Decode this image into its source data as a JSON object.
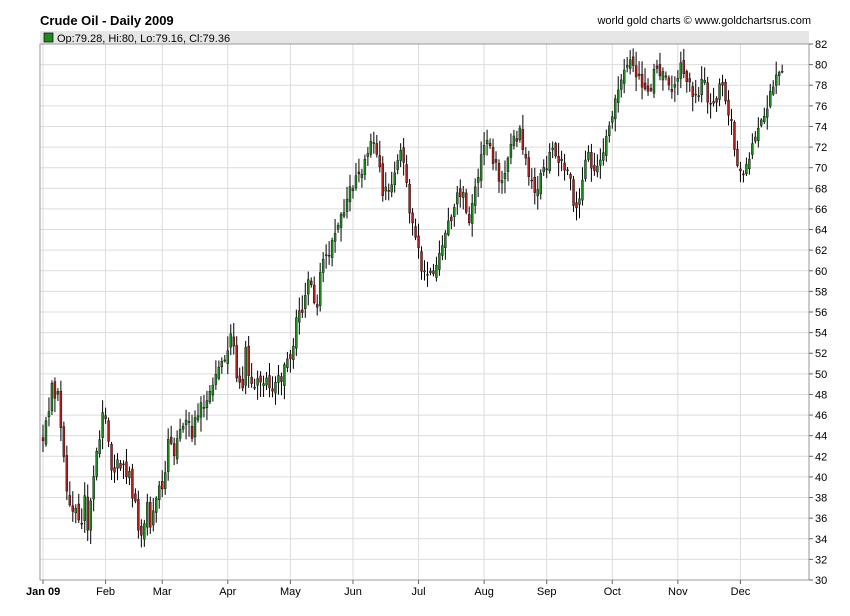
{
  "title": "Crude Oil - Daily 2009",
  "source": "world gold charts © www.goldchartsrus.com",
  "legend": {
    "text": "Op:79.28, Hi:80, Lo:79.16, Cl:79.36",
    "color": "#1e8a1e"
  },
  "colors": {
    "up": "#1e8a1e",
    "down": "#b01e1e",
    "wick": "#000000",
    "grid": "#dcdcdc",
    "header": "#e6e6e6"
  },
  "chart_data": {
    "type": "candlestick",
    "title": "Crude Oil - Daily 2009",
    "ylim": [
      30,
      82
    ],
    "yticks": [
      30,
      32,
      34,
      36,
      38,
      40,
      42,
      44,
      46,
      48,
      50,
      52,
      54,
      56,
      58,
      60,
      62,
      64,
      66,
      68,
      70,
      72,
      74,
      76,
      78,
      80,
      82
    ],
    "xlim": [
      0,
      256
    ],
    "xticks": [
      {
        "label": "Jan 09",
        "pos": 0
      },
      {
        "label": "Feb",
        "pos": 21
      },
      {
        "label": "Mar",
        "pos": 40
      },
      {
        "label": "Apr",
        "pos": 62
      },
      {
        "label": "May",
        "pos": 83
      },
      {
        "label": "Jun",
        "pos": 104
      },
      {
        "label": "Jul",
        "pos": 126
      },
      {
        "label": "Aug",
        "pos": 148
      },
      {
        "label": "Sep",
        "pos": 169
      },
      {
        "label": "Oct",
        "pos": 191
      },
      {
        "label": "Nov",
        "pos": 213
      },
      {
        "label": "Dec",
        "pos": 234
      }
    ],
    "last_bar": {
      "open": 79.28,
      "high": 80,
      "low": 79.16,
      "close": 79.36
    },
    "close_path": [
      [
        0,
        44
      ],
      [
        2,
        46
      ],
      [
        3,
        48.5
      ],
      [
        5,
        48
      ],
      [
        6,
        45
      ],
      [
        8,
        38
      ],
      [
        10,
        37
      ],
      [
        12,
        36.5
      ],
      [
        13,
        36
      ],
      [
        14,
        38
      ],
      [
        15,
        35
      ],
      [
        17,
        40
      ],
      [
        19,
        44
      ],
      [
        20,
        46
      ],
      [
        22,
        44
      ],
      [
        23,
        41
      ],
      [
        25,
        41
      ],
      [
        27,
        41
      ],
      [
        29,
        40
      ],
      [
        31,
        37
      ],
      [
        32,
        35
      ],
      [
        33,
        34.5
      ],
      [
        35,
        37
      ],
      [
        36,
        35
      ],
      [
        38,
        38.5
      ],
      [
        40,
        39
      ],
      [
        42,
        43
      ],
      [
        44,
        42.5
      ],
      [
        45,
        44
      ],
      [
        46,
        45
      ],
      [
        48,
        45.5
      ],
      [
        50,
        44
      ],
      [
        52,
        46.5
      ],
      [
        54,
        47
      ],
      [
        56,
        48.5
      ],
      [
        58,
        50
      ],
      [
        59,
        51
      ],
      [
        60,
        51.5
      ],
      [
        61,
        51.5
      ],
      [
        63,
        54
      ],
      [
        64,
        52
      ],
      [
        65,
        49
      ],
      [
        66,
        49
      ],
      [
        67,
        48.5
      ],
      [
        68,
        52.5
      ],
      [
        69,
        50.5
      ],
      [
        71,
        49
      ],
      [
        73,
        49
      ],
      [
        75,
        50
      ],
      [
        76,
        48
      ],
      [
        78,
        49
      ],
      [
        80,
        49.5
      ],
      [
        82,
        51
      ],
      [
        84,
        53
      ],
      [
        85,
        55
      ],
      [
        87,
        56
      ],
      [
        88,
        58
      ],
      [
        90,
        59
      ],
      [
        91,
        57
      ],
      [
        92,
        57
      ],
      [
        93,
        60
      ],
      [
        95,
        61
      ],
      [
        97,
        63
      ],
      [
        99,
        65
      ],
      [
        101,
        66
      ],
      [
        103,
        68
      ],
      [
        105,
        69
      ],
      [
        107,
        70
      ],
      [
        109,
        71
      ],
      [
        110,
        72
      ],
      [
        112,
        71.5
      ],
      [
        113,
        70
      ],
      [
        114,
        67
      ],
      [
        116,
        68
      ],
      [
        118,
        70
      ],
      [
        120,
        71
      ],
      [
        121,
        70
      ],
      [
        122,
        68
      ],
      [
        123,
        66
      ],
      [
        125,
        63.5
      ],
      [
        127,
        60.5
      ],
      [
        129,
        59
      ],
      [
        130,
        59.5
      ],
      [
        132,
        61
      ],
      [
        134,
        63
      ],
      [
        136,
        65
      ],
      [
        138,
        66
      ],
      [
        139,
        68
      ],
      [
        141,
        67
      ],
      [
        142,
        66
      ],
      [
        143,
        65
      ],
      [
        145,
        68
      ],
      [
        147,
        71
      ],
      [
        149,
        72
      ],
      [
        150,
        71.5
      ],
      [
        152,
        70
      ],
      [
        153,
        68.5
      ],
      [
        155,
        70
      ],
      [
        156,
        71.5
      ],
      [
        157,
        72
      ],
      [
        158,
        73
      ],
      [
        160,
        73.5
      ],
      [
        161,
        72
      ],
      [
        162,
        70.5
      ],
      [
        164,
        68.5
      ],
      [
        165,
        68
      ],
      [
        167,
        69
      ],
      [
        169,
        70
      ],
      [
        170,
        71
      ],
      [
        171,
        72
      ],
      [
        172,
        71
      ],
      [
        173,
        71
      ],
      [
        175,
        70
      ],
      [
        176,
        70
      ],
      [
        177,
        68.5
      ],
      [
        178,
        67
      ],
      [
        179,
        66.5
      ],
      [
        181,
        68.5
      ],
      [
        182,
        71
      ],
      [
        183,
        71
      ],
      [
        184,
        70
      ],
      [
        185,
        70
      ],
      [
        187,
        71
      ],
      [
        189,
        73
      ],
      [
        191,
        75
      ],
      [
        193,
        77
      ],
      [
        195,
        79
      ],
      [
        197,
        80.5
      ],
      [
        198,
        80
      ],
      [
        200,
        79
      ],
      [
        202,
        78
      ],
      [
        204,
        78
      ],
      [
        206,
        80
      ],
      [
        207,
        79
      ],
      [
        209,
        78.5
      ],
      [
        210,
        77.5
      ],
      [
        212,
        78
      ],
      [
        214,
        79.5
      ],
      [
        216,
        78.5
      ],
      [
        218,
        77
      ],
      [
        220,
        77.5
      ],
      [
        221,
        78
      ],
      [
        222,
        78
      ],
      [
        224,
        76
      ],
      [
        226,
        77
      ],
      [
        227,
        77.5
      ],
      [
        228,
        77.5
      ],
      [
        229,
        76.5
      ],
      [
        231,
        74
      ],
      [
        232,
        72
      ],
      [
        233,
        70
      ],
      [
        235,
        69.5
      ],
      [
        236,
        70.5
      ],
      [
        238,
        72
      ],
      [
        240,
        74
      ],
      [
        241,
        74.5
      ],
      [
        243,
        76
      ],
      [
        245,
        78
      ],
      [
        246,
        78.5
      ],
      [
        247,
        79
      ],
      [
        248,
        79.4
      ]
    ]
  }
}
